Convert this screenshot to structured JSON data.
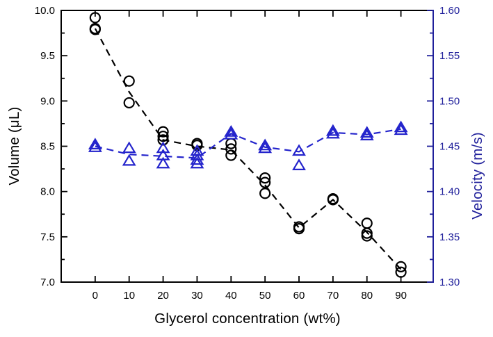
{
  "chart_data": {
    "type": "scatter",
    "title": "",
    "xlabel": "Glycerol concentration (wt%)",
    "ylabel_left": "Volume (μL)",
    "ylabel_right": "Velocity (m/s)",
    "xlim": [
      -10,
      99.5
    ],
    "ylim_left": [
      7.0,
      10.0
    ],
    "ylim_right": [
      1.3,
      1.6
    ],
    "grid": false,
    "legend": "none",
    "x_ticks": [
      0,
      10,
      20,
      30,
      40,
      50,
      60,
      70,
      80,
      90
    ],
    "x_tick_labels": [
      "0",
      "10",
      "20",
      "30",
      "40",
      "50",
      "60",
      "70",
      "80",
      "90"
    ],
    "y_ticks_left": [
      7.0,
      7.5,
      8.0,
      8.5,
      9.0,
      9.5,
      10.0
    ],
    "y_tick_labels_left": [
      "7.0",
      "7.5",
      "8.0",
      "8.5",
      "9.0",
      "9.5",
      "10.0"
    ],
    "y_minor_step_left": 0.25,
    "y_ticks_right": [
      1.3,
      1.35,
      1.4,
      1.45,
      1.5,
      1.55,
      1.6
    ],
    "y_tick_labels_right": [
      "1.30",
      "1.35",
      "1.40",
      "1.45",
      "1.50",
      "1.55",
      "1.60"
    ],
    "y_minor_step_right": 0.025,
    "colors": {
      "frame": "#000000",
      "volume": "#000000",
      "velocity_marker": "#2424cc",
      "velocity_axis": "#20209b",
      "background": "#ffffff"
    },
    "series": [
      {
        "name": "Volume",
        "axis": "left",
        "marker": "open-circle",
        "color": "#000000",
        "line_style": "dashed",
        "points": [
          {
            "x": 0,
            "y": [
              9.92,
              9.8,
              9.79
            ]
          },
          {
            "x": 10,
            "y": [
              9.22,
              8.98
            ]
          },
          {
            "x": 20,
            "y": [
              8.66,
              8.61,
              8.57
            ]
          },
          {
            "x": 30,
            "y": [
              8.53,
              8.51
            ]
          },
          {
            "x": 40,
            "y": [
              8.53,
              8.47,
              8.4
            ]
          },
          {
            "x": 50,
            "y": [
              8.15,
              8.1,
              7.98
            ]
          },
          {
            "x": 60,
            "y": [
              7.61,
              7.59
            ]
          },
          {
            "x": 70,
            "y": [
              7.92,
              7.91
            ]
          },
          {
            "x": 80,
            "y": [
              7.65,
              7.54,
              7.51
            ]
          },
          {
            "x": 90,
            "y": [
              7.17,
              7.11
            ]
          }
        ],
        "trend_line": [
          {
            "x": 0,
            "y": 9.8
          },
          {
            "x": 10,
            "y": 9.1
          },
          {
            "x": 20,
            "y": 8.57
          },
          {
            "x": 30,
            "y": 8.5
          },
          {
            "x": 40,
            "y": 8.46
          },
          {
            "x": 50,
            "y": 8.07
          },
          {
            "x": 60,
            "y": 7.6
          },
          {
            "x": 70,
            "y": 7.91
          },
          {
            "x": 80,
            "y": 7.55
          },
          {
            "x": 90,
            "y": 7.14
          }
        ]
      },
      {
        "name": "Velocity",
        "axis": "right",
        "marker": "open-triangle",
        "color": "#2424cc",
        "line_style": "dashed",
        "points": [
          {
            "x": 0,
            "y": [
              1.452,
              1.449
            ]
          },
          {
            "x": 10,
            "y": [
              1.448,
              1.434
            ]
          },
          {
            "x": 20,
            "y": [
              1.448,
              1.44,
              1.431
            ]
          },
          {
            "x": 30,
            "y": [
              1.445,
              1.44,
              1.435,
              1.431
            ]
          },
          {
            "x": 40,
            "y": [
              1.466,
              1.463
            ]
          },
          {
            "x": 50,
            "y": [
              1.451,
              1.448
            ]
          },
          {
            "x": 60,
            "y": [
              1.445,
              1.429
            ]
          },
          {
            "x": 70,
            "y": [
              1.467,
              1.464
            ]
          },
          {
            "x": 80,
            "y": [
              1.465,
              1.462
            ]
          },
          {
            "x": 90,
            "y": [
              1.471,
              1.468
            ]
          }
        ],
        "trend_line": [
          {
            "x": 0,
            "y": 1.45
          },
          {
            "x": 10,
            "y": 1.441
          },
          {
            "x": 20,
            "y": 1.439
          },
          {
            "x": 30,
            "y": 1.437
          },
          {
            "x": 40,
            "y": 1.464
          },
          {
            "x": 50,
            "y": 1.449
          },
          {
            "x": 60,
            "y": 1.444
          },
          {
            "x": 70,
            "y": 1.465
          },
          {
            "x": 80,
            "y": 1.463
          },
          {
            "x": 90,
            "y": 1.469
          }
        ]
      }
    ]
  }
}
